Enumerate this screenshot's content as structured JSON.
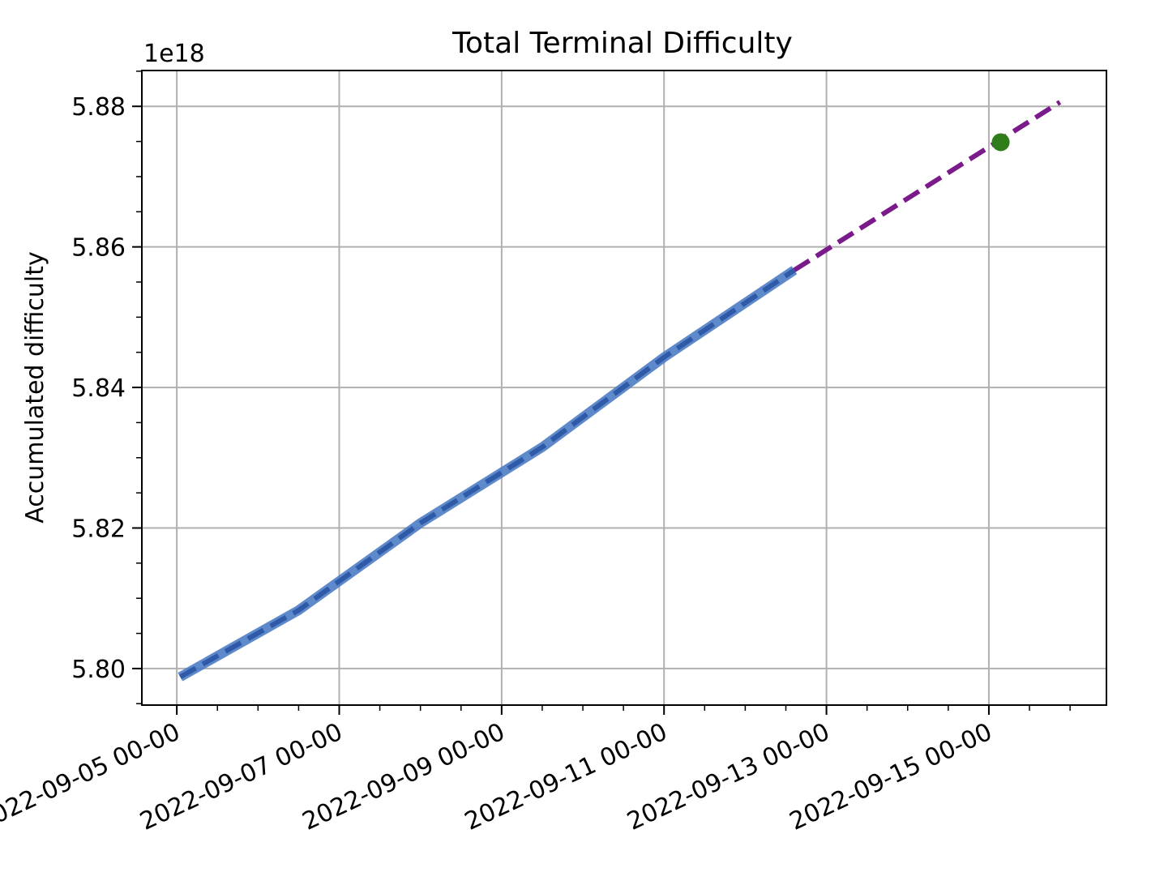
{
  "chart_data": {
    "type": "line",
    "title": "Total Terminal Difficulty",
    "xlabel": "",
    "ylabel": "Accumulated difficulty",
    "y_offset_label": "1e18",
    "xlim": [
      "2022-09-04T13:40",
      "2022-09-16T10:45"
    ],
    "ylim": [
      5.7948,
      5.8851
    ],
    "x_ticks": [
      "2022-09-05T00:00",
      "2022-09-07T00:00",
      "2022-09-09T00:00",
      "2022-09-11T00:00",
      "2022-09-13T00:00",
      "2022-09-15T00:00"
    ],
    "x_tick_labels": [
      "2022-09-05 00-00",
      "2022-09-07 00-00",
      "2022-09-09 00-00",
      "2022-09-11 00-00",
      "2022-09-13 00-00",
      "2022-09-15 00-00"
    ],
    "y_ticks": [
      5.8,
      5.82,
      5.84,
      5.86,
      5.88
    ],
    "y_tick_labels": [
      "5.80",
      "5.82",
      "5.84",
      "5.86",
      "5.88"
    ],
    "grid": true,
    "series": [
      {
        "style": "thick-solid-with-dashed-overlay",
        "color": "#4c7cc4",
        "overlay_color": "#2f5aa8",
        "x": [
          "2022-09-05T01:00",
          "2022-09-06T12:00",
          "2022-09-08T00:00",
          "2022-09-09T12:00",
          "2022-09-11T00:00",
          "2022-09-12T14:30"
        ],
        "y": [
          5.7988,
          5.8083,
          5.8207,
          5.8315,
          5.8443,
          5.8567
        ]
      },
      {
        "style": "dashed",
        "color": "#7b1a8a",
        "x": [
          "2022-09-12T14:30",
          "2022-09-15T21:00"
        ],
        "y": [
          5.8567,
          5.8806
        ]
      },
      {
        "style": "marker",
        "color": "#2e7d1a",
        "x": [
          "2022-09-15T03:30"
        ],
        "y": [
          5.8749
        ]
      }
    ]
  }
}
